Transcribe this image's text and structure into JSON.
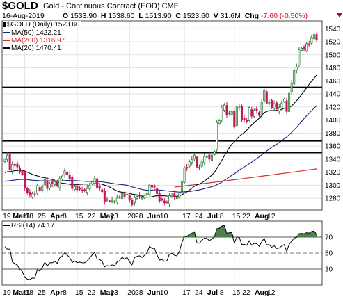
{
  "header": {
    "symbol": "$GOLD",
    "description": "Gold - Continuous Contract (EOD) CME",
    "date": "16-Aug-2019",
    "ohlc": {
      "open_label": "O",
      "open": "1533.90",
      "high_label": "H",
      "high": "1538.60",
      "low_label": "L",
      "low": "1513.90",
      "close_label": "C",
      "close": "1523.60",
      "volume_label": "V",
      "volume": "31.6M",
      "change_label": "Chg",
      "change": "-7.60 (-0.50%)"
    }
  },
  "legend": {
    "price": "$GOLD (Daily) 1523.60",
    "ma50": "MA(50) 1422.21",
    "ma200": "MA(200) 1316.97",
    "ma20": "MA(20) 1470.41"
  },
  "rsi_legend": "RSI(14) 74.17",
  "colors": {
    "up": "#2e7d32",
    "down": "#c2185b",
    "ma50": "#1a237e",
    "ma200": "#d32f2f",
    "ma20": "#000000",
    "rsi_fill": "#4f7f4f"
  },
  "chart_data": [
    {
      "type": "candlestick",
      "title": "$GOLD (Daily)",
      "y_ticks": [
        1280,
        1300,
        1320,
        1340,
        1360,
        1380,
        1400,
        1420,
        1440,
        1460,
        1480,
        1500,
        1520,
        1540
      ],
      "ylim": [
        1262,
        1552
      ],
      "x_tick_labels": [
        "19",
        "Mar",
        "11",
        "18",
        "25",
        "Apr",
        "8",
        "15",
        "22",
        "May",
        "13",
        "20",
        "28",
        "Jun",
        "10",
        "17",
        "24",
        "Jul",
        "8",
        "15",
        "22",
        "Aug",
        "12"
      ],
      "horizontal_lines": [
        1450,
        1368,
        1350
      ],
      "close_series": [
        {
          "date": "2019-02-19",
          "close": 1340
        },
        {
          "date": "2019-02-20",
          "close": 1346
        },
        {
          "date": "2019-02-21",
          "close": 1324
        },
        {
          "date": "2019-02-22",
          "close": 1332
        },
        {
          "date": "2019-02-25",
          "close": 1330
        },
        {
          "date": "2019-02-26",
          "close": 1328
        },
        {
          "date": "2019-02-27",
          "close": 1321
        },
        {
          "date": "2019-02-28",
          "close": 1316
        },
        {
          "date": "2019-03-01",
          "close": 1296
        },
        {
          "date": "2019-03-04",
          "close": 1288
        },
        {
          "date": "2019-03-05",
          "close": 1285
        },
        {
          "date": "2019-03-06",
          "close": 1287
        },
        {
          "date": "2019-03-07",
          "close": 1286
        },
        {
          "date": "2019-03-08",
          "close": 1299
        },
        {
          "date": "2019-03-11",
          "close": 1292
        },
        {
          "date": "2019-03-12",
          "close": 1298
        },
        {
          "date": "2019-03-13",
          "close": 1309
        },
        {
          "date": "2019-03-14",
          "close": 1295
        },
        {
          "date": "2019-03-15",
          "close": 1302
        },
        {
          "date": "2019-03-18",
          "close": 1302
        },
        {
          "date": "2019-03-19",
          "close": 1305
        },
        {
          "date": "2019-03-20",
          "close": 1299
        },
        {
          "date": "2019-03-21",
          "close": 1310
        },
        {
          "date": "2019-03-22",
          "close": 1314
        },
        {
          "date": "2019-03-25",
          "close": 1322
        },
        {
          "date": "2019-03-26",
          "close": 1316
        },
        {
          "date": "2019-03-27",
          "close": 1310
        },
        {
          "date": "2019-03-28",
          "close": 1295
        },
        {
          "date": "2019-03-29",
          "close": 1298
        },
        {
          "date": "2019-04-01",
          "close": 1293
        },
        {
          "date": "2019-04-02",
          "close": 1294
        },
        {
          "date": "2019-04-03",
          "close": 1292
        },
        {
          "date": "2019-04-04",
          "close": 1292
        },
        {
          "date": "2019-04-05",
          "close": 1295
        },
        {
          "date": "2019-04-08",
          "close": 1300
        },
        {
          "date": "2019-04-09",
          "close": 1305
        },
        {
          "date": "2019-04-10",
          "close": 1310
        },
        {
          "date": "2019-04-11",
          "close": 1296
        },
        {
          "date": "2019-04-12",
          "close": 1295
        },
        {
          "date": "2019-04-15",
          "close": 1290
        },
        {
          "date": "2019-04-16",
          "close": 1275
        },
        {
          "date": "2019-04-17",
          "close": 1277
        },
        {
          "date": "2019-04-18",
          "close": 1275
        },
        {
          "date": "2019-04-22",
          "close": 1277
        },
        {
          "date": "2019-04-23",
          "close": 1275
        },
        {
          "date": "2019-04-24",
          "close": 1280
        },
        {
          "date": "2019-04-25",
          "close": 1282
        },
        {
          "date": "2019-04-26",
          "close": 1287
        },
        {
          "date": "2019-04-29",
          "close": 1283
        },
        {
          "date": "2019-04-30",
          "close": 1286
        },
        {
          "date": "2019-05-01",
          "close": 1277
        },
        {
          "date": "2019-05-02",
          "close": 1270
        },
        {
          "date": "2019-05-03",
          "close": 1281
        },
        {
          "date": "2019-05-06",
          "close": 1283
        },
        {
          "date": "2019-05-07",
          "close": 1284
        },
        {
          "date": "2019-05-08",
          "close": 1281
        },
        {
          "date": "2019-05-09",
          "close": 1284
        },
        {
          "date": "2019-05-10",
          "close": 1288
        },
        {
          "date": "2019-05-13",
          "close": 1300
        },
        {
          "date": "2019-05-14",
          "close": 1297
        },
        {
          "date": "2019-05-15",
          "close": 1297
        },
        {
          "date": "2019-05-16",
          "close": 1287
        },
        {
          "date": "2019-05-17",
          "close": 1276
        },
        {
          "date": "2019-05-20",
          "close": 1277
        },
        {
          "date": "2019-05-21",
          "close": 1273
        },
        {
          "date": "2019-05-22",
          "close": 1274
        },
        {
          "date": "2019-05-23",
          "close": 1284
        },
        {
          "date": "2019-05-24",
          "close": 1285
        },
        {
          "date": "2019-05-28",
          "close": 1282
        },
        {
          "date": "2019-05-29",
          "close": 1281
        },
        {
          "date": "2019-05-30",
          "close": 1288
        },
        {
          "date": "2019-05-31",
          "close": 1306
        },
        {
          "date": "2019-06-03",
          "close": 1327
        },
        {
          "date": "2019-06-04",
          "close": 1326
        },
        {
          "date": "2019-06-05",
          "close": 1336
        },
        {
          "date": "2019-06-06",
          "close": 1339
        },
        {
          "date": "2019-06-07",
          "close": 1346
        },
        {
          "date": "2019-06-10",
          "close": 1328
        },
        {
          "date": "2019-06-11",
          "close": 1327
        },
        {
          "date": "2019-06-12",
          "close": 1337
        },
        {
          "date": "2019-06-13",
          "close": 1344
        },
        {
          "date": "2019-06-14",
          "close": 1344
        },
        {
          "date": "2019-06-17",
          "close": 1340
        },
        {
          "date": "2019-06-18",
          "close": 1346
        },
        {
          "date": "2019-06-19",
          "close": 1352
        },
        {
          "date": "2019-06-20",
          "close": 1396
        },
        {
          "date": "2019-06-21",
          "close": 1399
        },
        {
          "date": "2019-06-24",
          "close": 1418
        },
        {
          "date": "2019-06-25",
          "close": 1423
        },
        {
          "date": "2019-06-26",
          "close": 1408
        },
        {
          "date": "2019-06-27",
          "close": 1411
        },
        {
          "date": "2019-06-28",
          "close": 1413
        },
        {
          "date": "2019-07-01",
          "close": 1389
        },
        {
          "date": "2019-07-02",
          "close": 1420
        },
        {
          "date": "2019-07-03",
          "close": 1420
        },
        {
          "date": "2019-07-05",
          "close": 1400
        },
        {
          "date": "2019-07-08",
          "close": 1401
        },
        {
          "date": "2019-07-09",
          "close": 1398
        },
        {
          "date": "2019-07-10",
          "close": 1419
        },
        {
          "date": "2019-07-11",
          "close": 1406
        },
        {
          "date": "2019-07-12",
          "close": 1415
        },
        {
          "date": "2019-07-15",
          "close": 1414
        },
        {
          "date": "2019-07-16",
          "close": 1407
        },
        {
          "date": "2019-07-17",
          "close": 1427
        },
        {
          "date": "2019-07-18",
          "close": 1445
        },
        {
          "date": "2019-07-19",
          "close": 1426
        },
        {
          "date": "2019-07-22",
          "close": 1427
        },
        {
          "date": "2019-07-23",
          "close": 1419
        },
        {
          "date": "2019-07-24",
          "close": 1425
        },
        {
          "date": "2019-07-25",
          "close": 1417
        },
        {
          "date": "2019-07-26",
          "close": 1419
        },
        {
          "date": "2019-07-29",
          "close": 1426
        },
        {
          "date": "2019-07-30",
          "close": 1432
        },
        {
          "date": "2019-07-31",
          "close": 1413
        },
        {
          "date": "2019-08-01",
          "close": 1441
        },
        {
          "date": "2019-08-02",
          "close": 1457
        },
        {
          "date": "2019-08-05",
          "close": 1476
        },
        {
          "date": "2019-08-06",
          "close": 1481
        },
        {
          "date": "2019-08-07",
          "close": 1508
        },
        {
          "date": "2019-08-08",
          "close": 1510
        },
        {
          "date": "2019-08-09",
          "close": 1509
        },
        {
          "date": "2019-08-12",
          "close": 1517
        },
        {
          "date": "2019-08-13",
          "close": 1516
        },
        {
          "date": "2019-08-14",
          "close": 1527
        },
        {
          "date": "2019-08-15",
          "close": 1531
        },
        {
          "date": "2019-08-16",
          "close": 1523.6
        }
      ]
    },
    {
      "type": "line",
      "title": "RSI(14)",
      "y_ticks": [
        30,
        50,
        70
      ],
      "ylim": [
        10,
        90
      ],
      "reference_lines": [
        70,
        50,
        30
      ],
      "fill_above": 70
    }
  ]
}
